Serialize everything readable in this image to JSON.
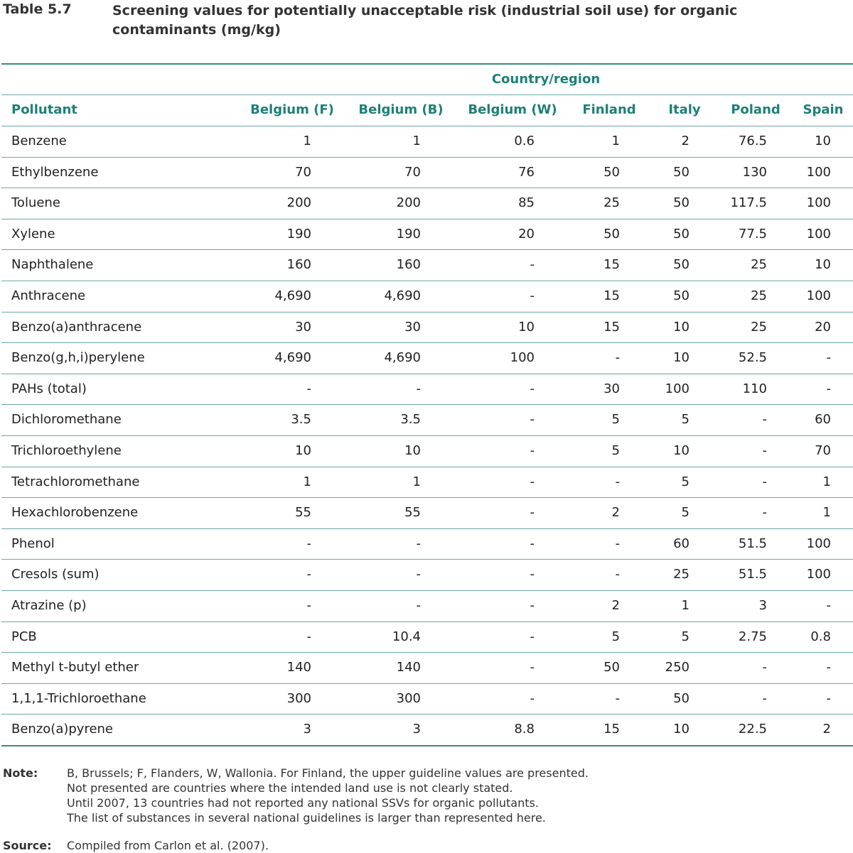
{
  "table_number": "Table 5.7",
  "table_title": "Screening values for potentially unacceptable risk (industrial soil use) for organic contaminants (mg/kg)",
  "group_header": "Country/region",
  "columns": [
    "Pollutant",
    "Belgium (F)",
    "Belgium (B)",
    "Belgium (W)",
    "Finland",
    "Italy",
    "Poland",
    "Spain"
  ],
  "rows": [
    [
      "Benzene",
      "1",
      "1",
      "0.6",
      "1",
      "2",
      "76.5",
      "10"
    ],
    [
      "Ethylbenzene",
      "70",
      "70",
      "76",
      "50",
      "50",
      "130",
      "100"
    ],
    [
      "Toluene",
      "200",
      "200",
      "85",
      "25",
      "50",
      "117.5",
      "100"
    ],
    [
      "Xylene",
      "190",
      "190",
      "20",
      "50",
      "50",
      "77.5",
      "100"
    ],
    [
      "Naphthalene",
      "160",
      "160",
      "-",
      "15",
      "50",
      "25",
      "10"
    ],
    [
      "Anthracene",
      "4,690",
      "4,690",
      "-",
      "15",
      "50",
      "25",
      "100"
    ],
    [
      "Benzo(a)anthracene",
      "30",
      "30",
      "10",
      "15",
      "10",
      "25",
      "20"
    ],
    [
      "Benzo(g,h,i)perylene",
      "4,690",
      "4,690",
      "100",
      "-",
      "10",
      "52.5",
      "-"
    ],
    [
      "PAHs (total)",
      "-",
      "-",
      "-",
      "30",
      "100",
      "110",
      "-"
    ],
    [
      "Dichloromethane",
      "3.5",
      "3.5",
      "-",
      "5",
      "5",
      "-",
      "60"
    ],
    [
      "Trichloroethylene",
      "10",
      "10",
      "-",
      "5",
      "10",
      "-",
      "70"
    ],
    [
      "Tetrachloromethane",
      "1",
      "1",
      "-",
      "-",
      "5",
      "-",
      "1"
    ],
    [
      "Hexachlorobenzene",
      "55",
      "55",
      "-",
      "2",
      "5",
      "-",
      "1"
    ],
    [
      "Phenol",
      "-",
      "-",
      "-",
      "-",
      "60",
      "51.5",
      "100"
    ],
    [
      "Cresols (sum)",
      "-",
      "-",
      "-",
      "-",
      "25",
      "51.5",
      "100"
    ],
    [
      "Atrazine (p)",
      "-",
      "-",
      "-",
      "2",
      "1",
      "3",
      "-"
    ],
    [
      "PCB",
      "-",
      "10.4",
      "-",
      "5",
      "5",
      "2.75",
      "0.8"
    ],
    [
      "Methyl t-butyl ether",
      "140",
      "140",
      "-",
      "50",
      "250",
      "-",
      "-"
    ],
    [
      "1,1,1-Trichloroethane",
      "300",
      "300",
      "-",
      "-",
      "50",
      "-",
      "-"
    ],
    [
      "Benzo(a)pyrene",
      "3",
      "3",
      "8.8",
      "15",
      "10",
      "22.5",
      "2"
    ]
  ],
  "note_label": "Note:",
  "note_lines": [
    "B, Brussels; F, Flanders, W, Wallonia. For Finland, the upper guideline values are presented.",
    "Not presented are countries where the intended land use is not clearly stated.",
    "Until 2007, 13 countries had not reported any national SSVs for organic pollutants.",
    "The list of substances in several national guidelines is larger than represented here."
  ],
  "source_label": "Source:",
  "source_text": "Compiled from Carlon et al. (2007).",
  "colors": {
    "header_text": "#1d8078",
    "rule": "#6aa9a2",
    "body_text": "#222222"
  }
}
